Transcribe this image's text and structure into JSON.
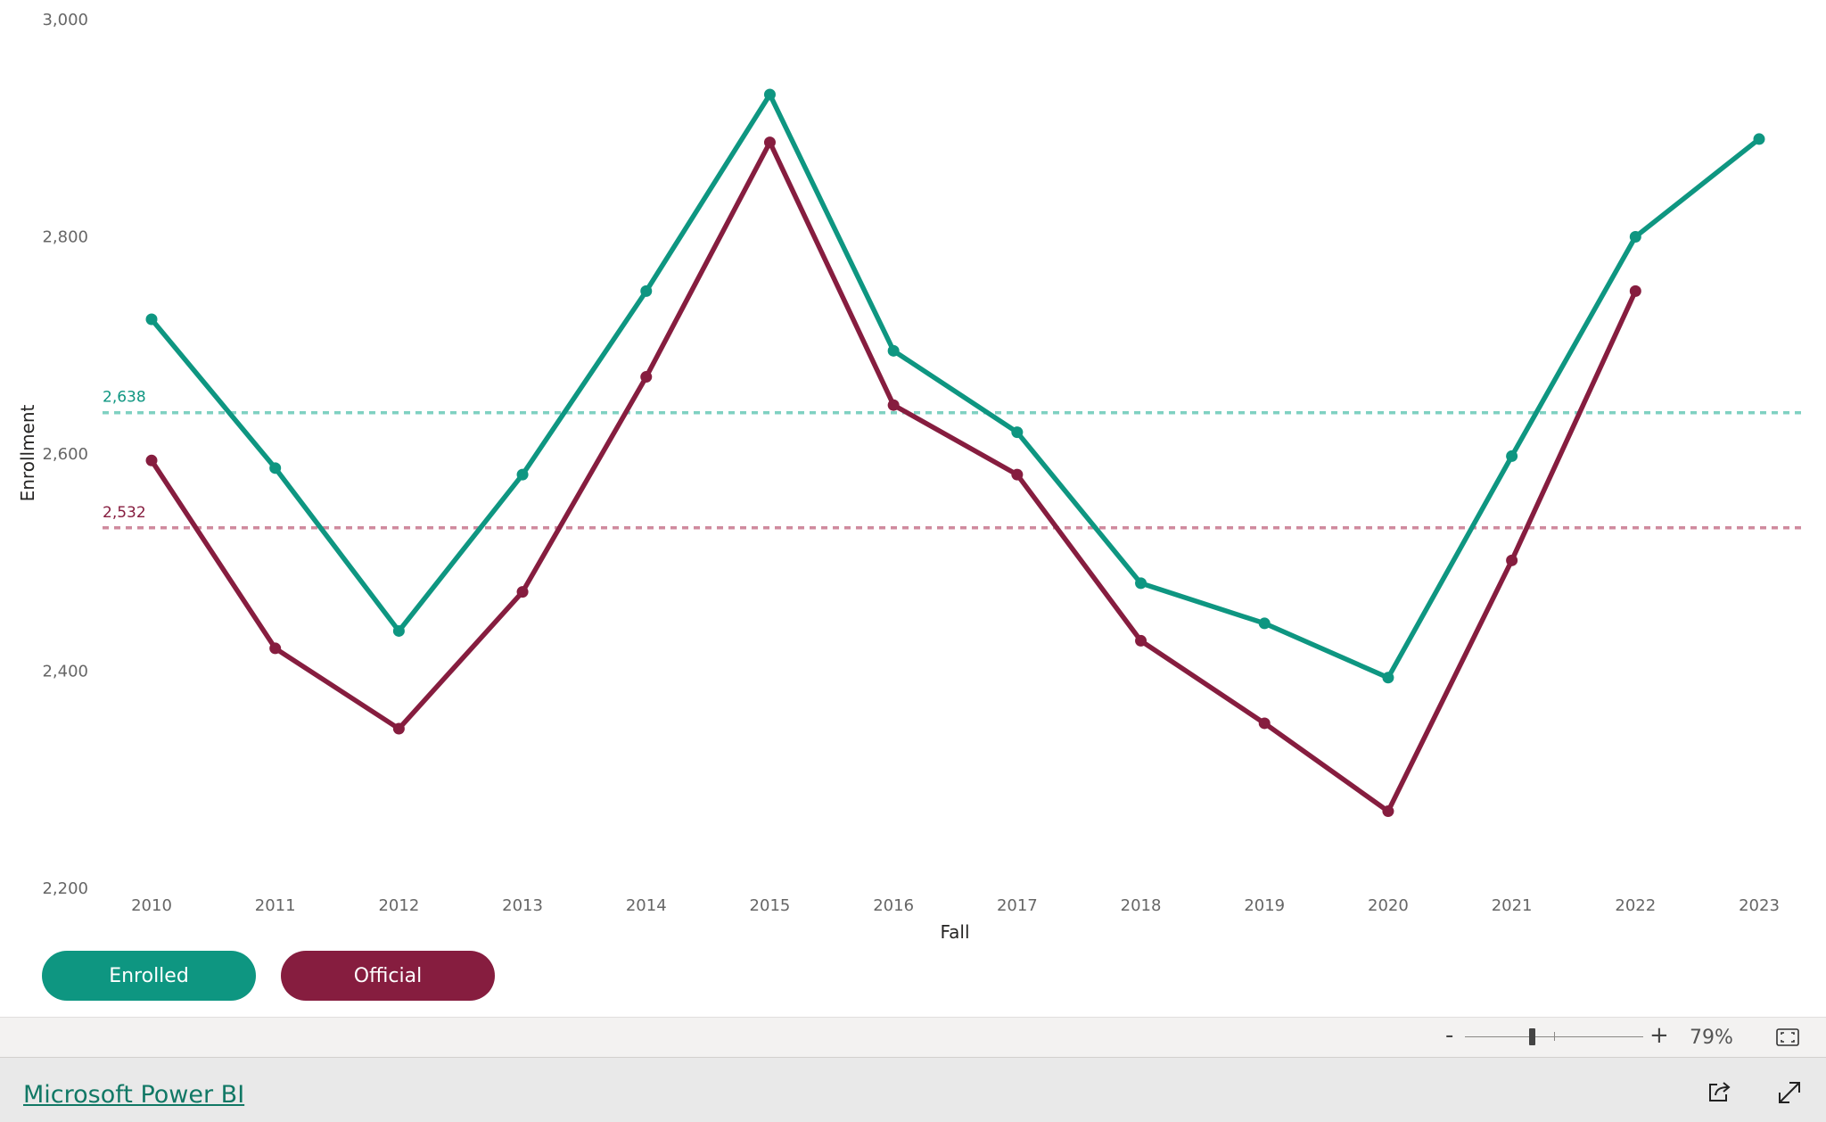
{
  "colors": {
    "enrolled": "#0e9681",
    "official": "#861d3f",
    "enrolled_ref": "#7fd1c2",
    "official_ref": "#cf8a9e"
  },
  "legend": {
    "enrolled_label": "Enrolled",
    "official_label": "Official"
  },
  "zoom": {
    "minus": "-",
    "plus": "+",
    "level": "79%"
  },
  "footer": {
    "link_text": "Microsoft Power BI",
    "icons": [
      "share-icon",
      "fullscreen-icon",
      "fit-page-icon"
    ]
  },
  "chart_data": {
    "type": "line",
    "title": "",
    "xlabel": "Fall",
    "ylabel": "Enrollment",
    "categories": [
      "2010",
      "2011",
      "2012",
      "2013",
      "2014",
      "2015",
      "2016",
      "2017",
      "2018",
      "2019",
      "2020",
      "2021",
      "2022",
      "2023"
    ],
    "ylim": [
      2200,
      3000
    ],
    "yticks": [
      2200,
      2400,
      2600,
      2800,
      3000
    ],
    "ytick_labels": [
      "2,200",
      "2,400",
      "2,600",
      "2,800",
      "3,000"
    ],
    "grid": false,
    "series": [
      {
        "name": "Enrolled",
        "color": "#0e9681",
        "values": [
          2724,
          2587,
          2437,
          2581,
          2750,
          2931,
          2695,
          2620,
          2481,
          2444,
          2394,
          2598,
          2800,
          2890
        ]
      },
      {
        "name": "Official",
        "color": "#861d3f",
        "values": [
          2594,
          2421,
          2347,
          2473,
          2671,
          2887,
          2645,
          2581,
          2428,
          2352,
          2271,
          2502,
          2750,
          null
        ]
      }
    ],
    "reference_lines": [
      {
        "series": "Enrolled",
        "value": 2638,
        "label": "2,638",
        "style": "dashed"
      },
      {
        "series": "Official",
        "value": 2532,
        "label": "2,532",
        "style": "dashed"
      }
    ]
  }
}
